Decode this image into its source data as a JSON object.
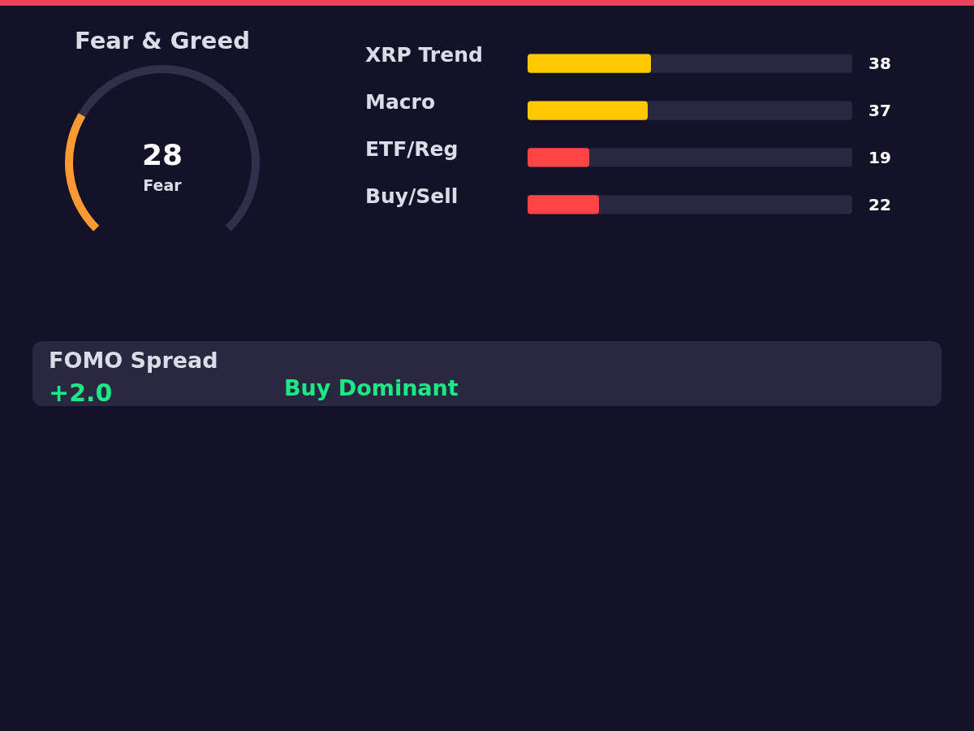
{
  "chart_data": [
    {
      "type": "donut",
      "title": "Fear & Greed",
      "categories": [
        null,
        null
      ],
      "values": [
        28,
        72
      ],
      "colors": [
        "#ff9933",
        "#30304a"
      ],
      "annotations": [
        "28",
        "Fear"
      ]
    },
    {
      "type": "bar",
      "orientation": "horizontal",
      "categories": [
        "XRP Trend",
        "Macro",
        "ETF/Reg",
        "Buy/Sell"
      ],
      "values": [
        38,
        37,
        19,
        22
      ],
      "colors": [
        "#ffc800",
        "#ffc800",
        "#ff4444",
        "#ff4444"
      ],
      "xlim": [
        0,
        100
      ],
      "data_labels": true,
      "tick_labels": "y"
    },
    {
      "type": "other",
      "title": "FOMO Spread",
      "annotations": [
        "+2.0",
        "Buy Dominant"
      ]
    }
  ]
}
